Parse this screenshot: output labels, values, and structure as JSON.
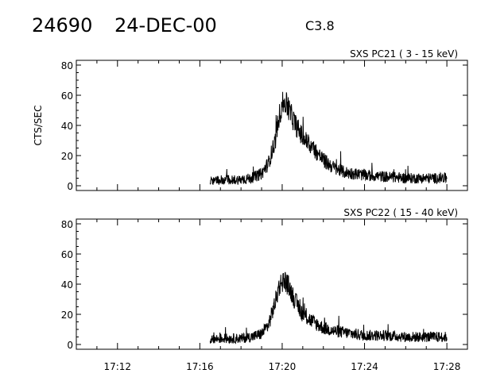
{
  "header": {
    "id": "24690",
    "date": "24-DEC-00",
    "flare_class": "C3.8"
  },
  "chart_data": [
    {
      "type": "line",
      "title": "SXS PC21  (  3 - 15 keV)",
      "ylabel": "CTS/SEC",
      "xlabel": "",
      "ylim": [
        0,
        80
      ],
      "yticks": [
        "0",
        "20",
        "40",
        "60",
        "80"
      ],
      "xlim": [
        "17:10",
        "17:29"
      ],
      "xticks": [],
      "x_unit": "time (HH:MM)",
      "series": [
        {
          "x": [
            "17:16:30",
            "17:17:00",
            "17:17:30",
            "17:18:00",
            "17:18:30",
            "17:19:00",
            "17:19:20",
            "17:19:40",
            "17:19:50",
            "17:20:00",
            "17:20:10",
            "17:20:20",
            "17:20:40",
            "17:21:00",
            "17:21:30",
            "17:22:00",
            "17:22:30",
            "17:23:00",
            "17:23:30",
            "17:24:00",
            "17:25:00",
            "17:26:00",
            "17:27:00",
            "17:28:00"
          ],
          "values": [
            3,
            4,
            4,
            4,
            5,
            8,
            15,
            30,
            45,
            54,
            55,
            50,
            40,
            32,
            25,
            17,
            12,
            9,
            8,
            7,
            6,
            5,
            5,
            5
          ]
        }
      ]
    },
    {
      "type": "line",
      "title": "SXS PC22  ( 15 - 40 keV)",
      "ylabel": "",
      "xlabel": "",
      "ylim": [
        0,
        80
      ],
      "yticks": [
        "0",
        "20",
        "40",
        "60",
        "80"
      ],
      "xlim": [
        "17:10",
        "17:29"
      ],
      "xticks": [
        "17:12",
        "17:16",
        "17:20",
        "17:24",
        "17:28"
      ],
      "x_unit": "time (HH:MM)",
      "series": [
        {
          "x": [
            "17:16:30",
            "17:17:00",
            "17:17:30",
            "17:18:00",
            "17:18:30",
            "17:19:00",
            "17:19:20",
            "17:19:40",
            "17:19:50",
            "17:20:00",
            "17:20:10",
            "17:20:20",
            "17:20:40",
            "17:21:00",
            "17:21:30",
            "17:22:00",
            "17:22:30",
            "17:23:00",
            "17:23:30",
            "17:24:00",
            "17:25:00",
            "17:26:00",
            "17:27:00",
            "17:28:00"
          ],
          "values": [
            3,
            4,
            4,
            4,
            5,
            7,
            13,
            28,
            38,
            42,
            42,
            38,
            28,
            20,
            15,
            11,
            9,
            8,
            7,
            6,
            6,
            5,
            5,
            5
          ]
        }
      ]
    }
  ]
}
